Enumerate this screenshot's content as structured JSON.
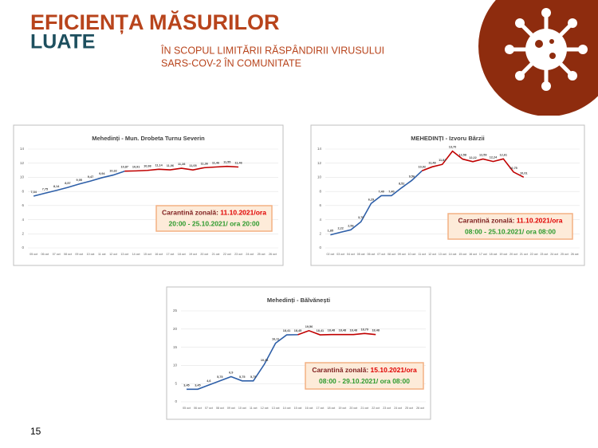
{
  "slide": {
    "title": "EFICIENȚA MĂSURILOR",
    "title2": "LUATE",
    "subtitle": [
      "ÎN SCOPUL LIMITĂRII RĂSPÂNDIRII VIRUSULUI",
      "SARS-COV-2 ÎN COMUNITATE"
    ],
    "page": "15"
  },
  "chart_data": [
    {
      "type": "line",
      "title": "Mehedinți - Mun. Drobeta Turnu Severin",
      "categories": [
        "05 oct",
        "06 oct",
        "07 oct",
        "08 oct",
        "09 oct",
        "10 oct",
        "11 oct",
        "12 oct",
        "13 oct",
        "14 oct",
        "15 oct",
        "16 oct",
        "17 oct",
        "18 oct",
        "19 oct",
        "20 oct",
        "21 oct",
        "22 oct",
        "23 oct",
        "24 oct",
        "25 oct",
        "26 oct"
      ],
      "series": [
        {
          "color": "#2e5fa8",
          "highlight_from": "13 oct",
          "highlight_color": "#c00000",
          "values": [
            7.34,
            7.75,
            8.14,
            8.57,
            9.05,
            9.47,
            9.94,
            10.32,
            10.87,
            10.91,
            10.98,
            11.14,
            11.06,
            11.28,
            11.05,
            11.36,
            11.46,
            11.55,
            11.46,
            null,
            null,
            null
          ],
          "value_labels": [
            "7,34",
            "7,75",
            "8,14",
            "8,57",
            "9,05",
            "9,47",
            "9,94",
            "10,32",
            "10,87",
            "10,91",
            "10,98",
            "11,14",
            "11,06",
            "11,28",
            "11,05",
            "11,36",
            "11,46",
            "11,55",
            "11,46",
            null,
            null,
            null
          ]
        }
      ],
      "ylim": [
        0,
        14
      ],
      "yticks": [
        0,
        2,
        4,
        6,
        8,
        10,
        12,
        14
      ],
      "grid": true,
      "annotation": {
        "label": "Carantină zonală:",
        "start": "11.10.2021/ora",
        "end": "20:00 - 25.10.2021/ ora 20:00"
      }
    },
    {
      "type": "line",
      "title": "MEHEDINȚI - Izvoru Bârzii",
      "categories": [
        "02 oct",
        "03 oct",
        "04 oct",
        "05 oct",
        "06 oct",
        "07 oct",
        "08 oct",
        "09 oct",
        "10 oct",
        "11 oct",
        "12 oct",
        "13 oct",
        "14 oct",
        "15 oct",
        "16 oct",
        "17 oct",
        "18 oct",
        "19 oct",
        "20 oct",
        "21 oct",
        "22 oct",
        "23 oct",
        "24 oct",
        "25 oct",
        "26 oct"
      ],
      "series": [
        {
          "color": "#2e5fa8",
          "highlight_from": "11 oct",
          "highlight_color": "#c00000",
          "values": [
            1.85,
            2.22,
            2.56,
            3.7,
            6.29,
            7.4,
            7.4,
            8.52,
            9.56,
            10.92,
            11.48,
            11.83,
            13.7,
            12.58,
            12.22,
            12.59,
            12.24,
            12.61,
            10.75,
            10.01,
            null,
            null,
            null,
            null,
            null
          ],
          "value_labels": [
            "1,85",
            "2,22",
            "2,56",
            "3,70",
            "6,29",
            "7,40",
            "7,40",
            "8,52",
            "9,56",
            "10,92",
            "11,48",
            "11,83",
            "13,70",
            "12,58",
            "12,22",
            "12,59",
            "12,24",
            "12,61",
            "10,75",
            "10,01",
            null,
            null,
            null,
            null,
            null
          ]
        }
      ],
      "ylim": [
        0,
        14
      ],
      "yticks": [
        0,
        2,
        4,
        6,
        8,
        10,
        12,
        14
      ],
      "grid": true,
      "annotation": {
        "label": "Carantină zonală:",
        "start": "11.10.2021/ora",
        "end": "08:00 - 25.10.2021/ ora 08:00"
      }
    },
    {
      "type": "line",
      "title": "Mehedinți - Bălvănești",
      "categories": [
        "05 oct",
        "06 oct",
        "07 oct",
        "08 oct",
        "09 oct",
        "10 oct",
        "11 oct",
        "12 oct",
        "13 oct",
        "14 oct",
        "15 oct",
        "16 oct",
        "17 oct",
        "18 oct",
        "19 oct",
        "20 oct",
        "21 oct",
        "22 oct",
        "23 oct",
        "24 oct",
        "25 oct",
        "26 oct"
      ],
      "series": [
        {
          "color": "#2e5fa8",
          "highlight_from": "15 oct",
          "highlight_color": "#c00000",
          "values": [
            3.45,
            3.45,
            4.6,
            5.75,
            6.9,
            5.75,
            5.75,
            10.36,
            16.11,
            18.41,
            18.45,
            19.56,
            18.41,
            18.48,
            18.48,
            18.48,
            18.79,
            18.48,
            null,
            null,
            null,
            null
          ],
          "value_labels": [
            "3,45",
            "3,45",
            "4,6",
            "5,75",
            "6,9",
            "5,75",
            "5,75",
            "10,36",
            "16,11",
            "18,41",
            "18,45",
            "19,56",
            "18,41",
            "18,48",
            "18,48",
            "18,48",
            "18,79",
            "18,48",
            null,
            null,
            null,
            null
          ]
        }
      ],
      "ylim": [
        0,
        25
      ],
      "yticks": [
        0,
        5,
        10,
        15,
        20,
        25
      ],
      "grid": true,
      "annotation": {
        "label": "Carantină zonală:",
        "start": "15.10.2021/ora",
        "end": "08:00 - 29.10.2021/ ora 08:00"
      }
    }
  ]
}
